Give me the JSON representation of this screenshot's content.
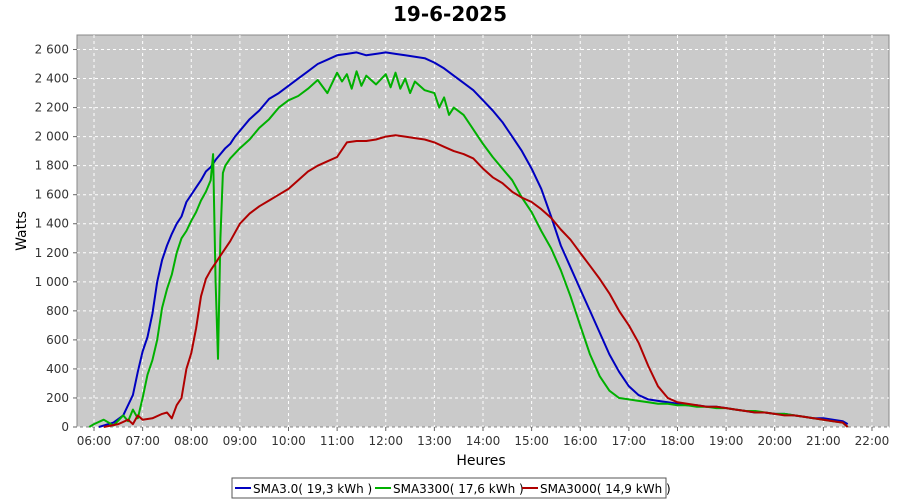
{
  "chart_data": {
    "type": "line",
    "title": "19-6-2025",
    "xlabel": "Heures",
    "ylabel": "Watts",
    "xlim": [
      5.65,
      22.35
    ],
    "ylim": [
      0,
      2700
    ],
    "grid": true,
    "x_ticks": [
      "06:00",
      "07:00",
      "08:00",
      "09:00",
      "10:00",
      "11:00",
      "12:00",
      "13:00",
      "14:00",
      "15:00",
      "16:00",
      "17:00",
      "18:00",
      "19:00",
      "20:00",
      "21:00",
      "22:00"
    ],
    "y_ticks": [
      0,
      200,
      400,
      600,
      800,
      1000,
      1200,
      1400,
      1600,
      1800,
      2000,
      2200,
      2400,
      2600
    ],
    "y_tick_labels": [
      "0",
      "200",
      "400",
      "600",
      "800",
      "1 000",
      "1 200",
      "1 400",
      "1 600",
      "1 800",
      "2 000",
      "2 200",
      "2 400",
      "2 600"
    ],
    "legend_position": "bottom-center",
    "series": [
      {
        "name": "SMA3.0( 19,3 kWh )",
        "color": "#0000c0",
        "x": [
          6.1,
          6.4,
          6.6,
          6.8,
          6.9,
          7.0,
          7.1,
          7.2,
          7.3,
          7.4,
          7.5,
          7.6,
          7.7,
          7.8,
          7.9,
          8.0,
          8.1,
          8.2,
          8.3,
          8.4,
          8.5,
          8.6,
          8.7,
          8.8,
          8.9,
          9.0,
          9.2,
          9.4,
          9.6,
          9.8,
          10.0,
          10.2,
          10.4,
          10.6,
          10.8,
          11.0,
          11.2,
          11.4,
          11.6,
          11.8,
          12.0,
          12.2,
          12.4,
          12.6,
          12.8,
          13.0,
          13.2,
          13.4,
          13.6,
          13.8,
          14.0,
          14.2,
          14.4,
          14.6,
          14.8,
          15.0,
          15.2,
          15.4,
          15.6,
          15.8,
          16.0,
          16.2,
          16.4,
          16.6,
          16.8,
          17.0,
          17.2,
          17.4,
          17.6,
          17.8,
          18.0,
          18.2,
          18.4,
          18.6,
          18.8,
          19.0,
          19.2,
          19.4,
          19.6,
          19.8,
          20.0,
          20.2,
          20.4,
          20.6,
          20.8,
          21.0,
          21.2,
          21.4,
          21.5
        ],
        "values": [
          0,
          30,
          80,
          220,
          380,
          520,
          620,
          780,
          1000,
          1150,
          1250,
          1330,
          1400,
          1450,
          1550,
          1600,
          1650,
          1700,
          1760,
          1790,
          1840,
          1880,
          1920,
          1950,
          2000,
          2040,
          2120,
          2180,
          2260,
          2300,
          2350,
          2400,
          2450,
          2500,
          2530,
          2560,
          2570,
          2580,
          2560,
          2570,
          2580,
          2570,
          2560,
          2550,
          2540,
          2510,
          2470,
          2420,
          2370,
          2320,
          2250,
          2180,
          2100,
          2000,
          1900,
          1780,
          1640,
          1450,
          1250,
          1100,
          950,
          800,
          650,
          500,
          380,
          280,
          220,
          190,
          180,
          170,
          160,
          150,
          150,
          140,
          140,
          130,
          120,
          110,
          100,
          100,
          90,
          90,
          80,
          70,
          60,
          60,
          50,
          40,
          20
        ]
      },
      {
        "name": "SMA3300( 17,6 kWh )",
        "color": "#00b000",
        "x": [
          5.9,
          6.0,
          6.2,
          6.4,
          6.6,
          6.7,
          6.8,
          6.9,
          7.0,
          7.1,
          7.2,
          7.3,
          7.4,
          7.5,
          7.6,
          7.7,
          7.8,
          7.9,
          8.0,
          8.1,
          8.2,
          8.3,
          8.4,
          8.45,
          8.5,
          8.55,
          8.6,
          8.65,
          8.7,
          8.8,
          9.0,
          9.2,
          9.4,
          9.6,
          9.8,
          10.0,
          10.2,
          10.4,
          10.6,
          10.8,
          11.0,
          11.1,
          11.2,
          11.3,
          11.4,
          11.5,
          11.6,
          11.8,
          12.0,
          12.1,
          12.2,
          12.3,
          12.4,
          12.5,
          12.6,
          12.8,
          13.0,
          13.1,
          13.2,
          13.3,
          13.4,
          13.6,
          13.8,
          14.0,
          14.2,
          14.4,
          14.6,
          14.8,
          15.0,
          15.2,
          15.4,
          15.6,
          15.8,
          16.0,
          16.2,
          16.4,
          16.6,
          16.8,
          17.0,
          17.2,
          17.4,
          17.6,
          17.8,
          18.0,
          18.2,
          18.4,
          18.6,
          18.8,
          19.0,
          19.2,
          19.4,
          19.6,
          19.8,
          20.0,
          20.2,
          20.4,
          20.6,
          20.8,
          21.0,
          21.2,
          21.4,
          21.5
        ],
        "values": [
          0,
          20,
          50,
          10,
          80,
          40,
          120,
          60,
          200,
          360,
          460,
          600,
          820,
          950,
          1050,
          1200,
          1300,
          1350,
          1420,
          1480,
          1560,
          1620,
          1700,
          1880,
          1000,
          470,
          1300,
          1750,
          1800,
          1850,
          1920,
          1980,
          2060,
          2120,
          2200,
          2250,
          2280,
          2330,
          2390,
          2300,
          2440,
          2380,
          2430,
          2330,
          2450,
          2350,
          2420,
          2360,
          2430,
          2340,
          2440,
          2330,
          2400,
          2300,
          2380,
          2320,
          2300,
          2200,
          2270,
          2150,
          2200,
          2150,
          2050,
          1950,
          1860,
          1780,
          1700,
          1580,
          1480,
          1350,
          1230,
          1080,
          900,
          700,
          500,
          350,
          250,
          200,
          190,
          180,
          170,
          160,
          160,
          150,
          150,
          140,
          140,
          130,
          130,
          120,
          110,
          110,
          100,
          90,
          90,
          80,
          70,
          60,
          50,
          40,
          30,
          0
        ]
      },
      {
        "name": "SMA3000( 14,9 kWh )",
        "color": "#b00000",
        "x": [
          6.2,
          6.5,
          6.7,
          6.8,
          6.9,
          7.0,
          7.2,
          7.4,
          7.5,
          7.6,
          7.7,
          7.8,
          7.9,
          8.0,
          8.1,
          8.2,
          8.3,
          8.4,
          8.5,
          8.6,
          8.7,
          8.8,
          9.0,
          9.2,
          9.4,
          9.6,
          9.8,
          10.0,
          10.2,
          10.4,
          10.6,
          10.8,
          11.0,
          11.2,
          11.4,
          11.6,
          11.8,
          12.0,
          12.2,
          12.4,
          12.6,
          12.8,
          13.0,
          13.2,
          13.4,
          13.6,
          13.8,
          14.0,
          14.2,
          14.4,
          14.6,
          14.8,
          15.0,
          15.2,
          15.4,
          15.6,
          15.8,
          16.0,
          16.2,
          16.4,
          16.6,
          16.8,
          17.0,
          17.2,
          17.4,
          17.6,
          17.8,
          18.0,
          18.2,
          18.4,
          18.6,
          18.8,
          19.0,
          19.2,
          19.4,
          19.6,
          19.8,
          20.0,
          20.2,
          20.4,
          20.6,
          20.8,
          21.0,
          21.2,
          21.4,
          21.5
        ],
        "values": [
          0,
          20,
          50,
          20,
          80,
          50,
          60,
          90,
          100,
          60,
          150,
          200,
          400,
          510,
          680,
          900,
          1020,
          1080,
          1130,
          1180,
          1230,
          1280,
          1400,
          1470,
          1520,
          1560,
          1600,
          1640,
          1700,
          1760,
          1800,
          1830,
          1860,
          1960,
          1970,
          1970,
          1980,
          2000,
          2010,
          2000,
          1990,
          1980,
          1960,
          1930,
          1900,
          1880,
          1850,
          1780,
          1720,
          1680,
          1620,
          1580,
          1550,
          1500,
          1440,
          1360,
          1290,
          1200,
          1110,
          1020,
          920,
          800,
          700,
          580,
          420,
          280,
          200,
          170,
          160,
          150,
          140,
          140,
          130,
          120,
          110,
          100,
          100,
          90,
          80,
          80,
          70,
          60,
          50,
          40,
          30,
          0
        ]
      }
    ]
  }
}
